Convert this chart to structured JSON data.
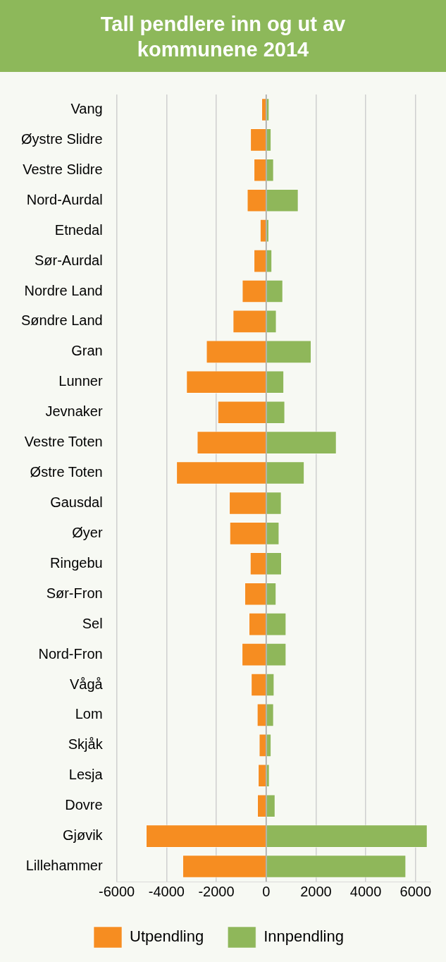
{
  "chart_data": {
    "type": "bar",
    "orientation": "horizontal",
    "stacked": true,
    "title": "Tall pendlere inn og ut av kommunene 2014",
    "categories": [
      "Vang",
      "Øystre Slidre",
      "Vestre Slidre",
      "Nord-Aurdal",
      "Etnedal",
      "Sør-Aurdal",
      "Nordre Land",
      "Søndre Land",
      "Gran",
      "Lunner",
      "Jevnaker",
      "Vestre Toten",
      "Østre Toten",
      "Gausdal",
      "Øyer",
      "Ringebu",
      "Sør-Fron",
      "Sel",
      "Nord-Fron",
      "Vågå",
      "Lom",
      "Skjåk",
      "Lesja",
      "Dovre",
      "Gjøvik",
      "Lillehammer"
    ],
    "series": [
      {
        "name": "Utpendling",
        "color": "#f68d21",
        "values": [
          -190,
          -640,
          -500,
          -770,
          -250,
          -500,
          -970,
          -1340,
          -2410,
          -3210,
          -1950,
          -2780,
          -3610,
          -1490,
          -1470,
          -650,
          -870,
          -700,
          -980,
          -610,
          -370,
          -290,
          -330,
          -360,
          -4830,
          -3360
        ]
      },
      {
        "name": "Innpendling",
        "color": "#8fb75a",
        "values": [
          130,
          210,
          310,
          1300,
          120,
          240,
          680,
          420,
          1820,
          720,
          760,
          2830,
          1540,
          620,
          530,
          630,
          410,
          810,
          810,
          330,
          310,
          210,
          140,
          370,
          6480,
          5620
        ]
      }
    ],
    "xlim": [
      -6000,
      6600
    ],
    "xticks": [
      -6000,
      -4000,
      -2000,
      0,
      2000,
      4000,
      6000
    ],
    "grid": "x",
    "legend": "bottom"
  }
}
